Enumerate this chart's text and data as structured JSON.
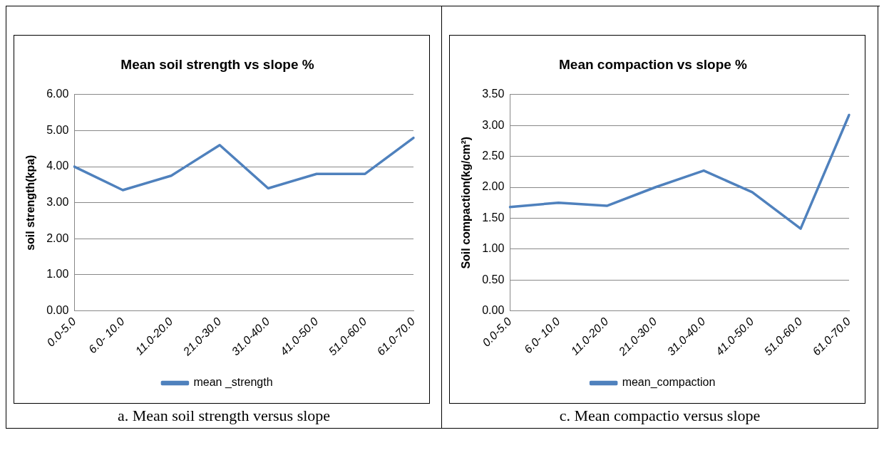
{
  "chart_data": [
    {
      "type": "line",
      "title": "Mean soil strength vs slope %",
      "ylabel": "soil strength(kpa)",
      "categories": [
        "0.0-5.0",
        "6.0- 10.0",
        "11.0-20.0",
        "21.0-30.0",
        "31.0-40.0",
        "41.0-50.0",
        "51.0-60.0",
        "61.0-70.0"
      ],
      "series": [
        {
          "name": "mean _strength",
          "color": "#4f81bd",
          "values": [
            4.0,
            3.35,
            3.75,
            4.6,
            3.4,
            3.8,
            3.8,
            4.8
          ]
        }
      ],
      "ylim": [
        0,
        6
      ],
      "yticks": [
        {
          "value": 0,
          "label": "0.00"
        },
        {
          "value": 1,
          "label": "1.00"
        },
        {
          "value": 2,
          "label": "2.00"
        },
        {
          "value": 3,
          "label": "3.00"
        },
        {
          "value": 4,
          "label": "4.00"
        },
        {
          "value": 5,
          "label": "5.00"
        },
        {
          "value": 6,
          "label": "6.00"
        }
      ],
      "grid": "y",
      "legend": "bottom",
      "marker": "none",
      "line_style": "solid",
      "annotations": [
        "a.    Mean soil strength versus slope"
      ]
    },
    {
      "type": "line",
      "title": "Mean compaction vs slope %",
      "ylabel": "Soil compaction(kg/cm²)",
      "categories": [
        "0.0-5.0",
        "6.0- 10.0",
        "11.0-20.0",
        "21.0-30.0",
        "31.0-40.0",
        "41.0-50.0",
        "51.0-60.0",
        "61.0-70.0"
      ],
      "series": [
        {
          "name": "mean_compaction",
          "color": "#4f81bd",
          "values": [
            1.68,
            1.75,
            1.7,
            2.0,
            2.27,
            1.92,
            1.33,
            3.17
          ]
        }
      ],
      "ylim": [
        0,
        3.5
      ],
      "yticks": [
        {
          "value": 0,
          "label": "0.00"
        },
        {
          "value": 0.5,
          "label": "0.50"
        },
        {
          "value": 1,
          "label": "1.00"
        },
        {
          "value": 1.5,
          "label": "1.50"
        },
        {
          "value": 2,
          "label": "2.00"
        },
        {
          "value": 2.5,
          "label": "2.50"
        },
        {
          "value": 3,
          "label": "3.00"
        },
        {
          "value": 3.5,
          "label": "3.50"
        }
      ],
      "grid": "y",
      "legend": "bottom",
      "marker": "none",
      "line_style": "solid",
      "annotations": [
        "c.    Mean compactio versus slope"
      ]
    }
  ]
}
